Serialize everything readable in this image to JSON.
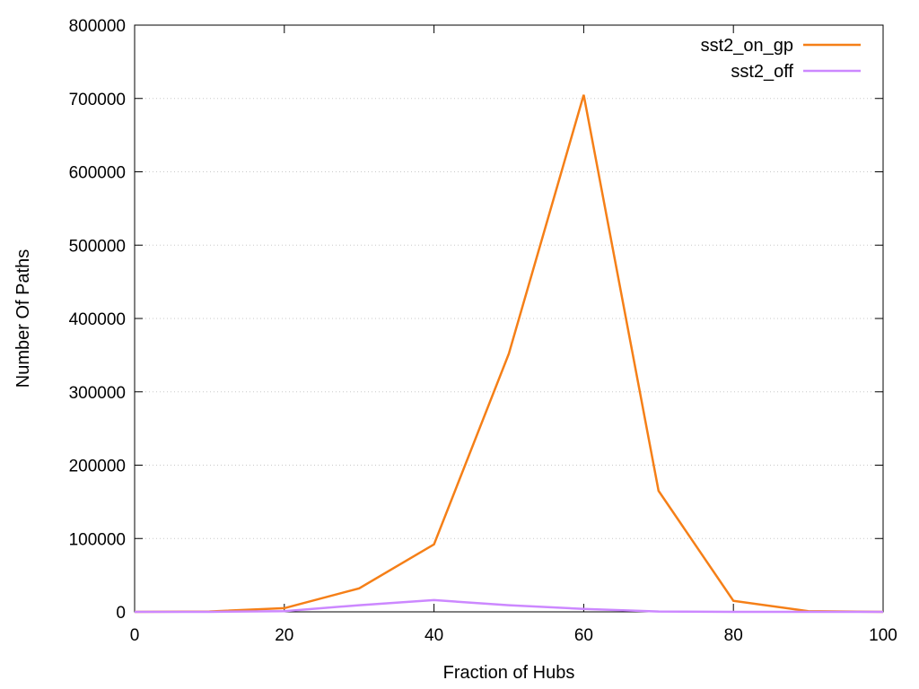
{
  "chart_data": {
    "type": "line",
    "title": "",
    "xlabel": "Fraction of Hubs",
    "ylabel": "Number Of Paths",
    "xlim": [
      0,
      100
    ],
    "ylim": [
      0,
      800000
    ],
    "x_ticks": [
      "0",
      "20",
      "40",
      "60",
      "80",
      "100"
    ],
    "y_ticks": [
      "0",
      "100000",
      "200000",
      "300000",
      "400000",
      "500000",
      "600000",
      "700000",
      "800000"
    ],
    "grid": "horizontal dotted",
    "legend_position": "top-right",
    "series": [
      {
        "name": "sst2_on_gp",
        "color": "#f57f17",
        "x": [
          0,
          10,
          20,
          30,
          40,
          50,
          60,
          70,
          80,
          90,
          100
        ],
        "y": [
          0,
          500,
          5000,
          32000,
          92000,
          352000,
          705000,
          165000,
          15000,
          1000,
          0
        ]
      },
      {
        "name": "sst2_off",
        "color": "#cc88ff",
        "x": [
          0,
          10,
          20,
          30,
          40,
          50,
          60,
          70,
          80,
          90,
          100
        ],
        "y": [
          0,
          0,
          1000,
          9000,
          16000,
          9000,
          4000,
          500,
          0,
          0,
          0
        ]
      }
    ]
  }
}
